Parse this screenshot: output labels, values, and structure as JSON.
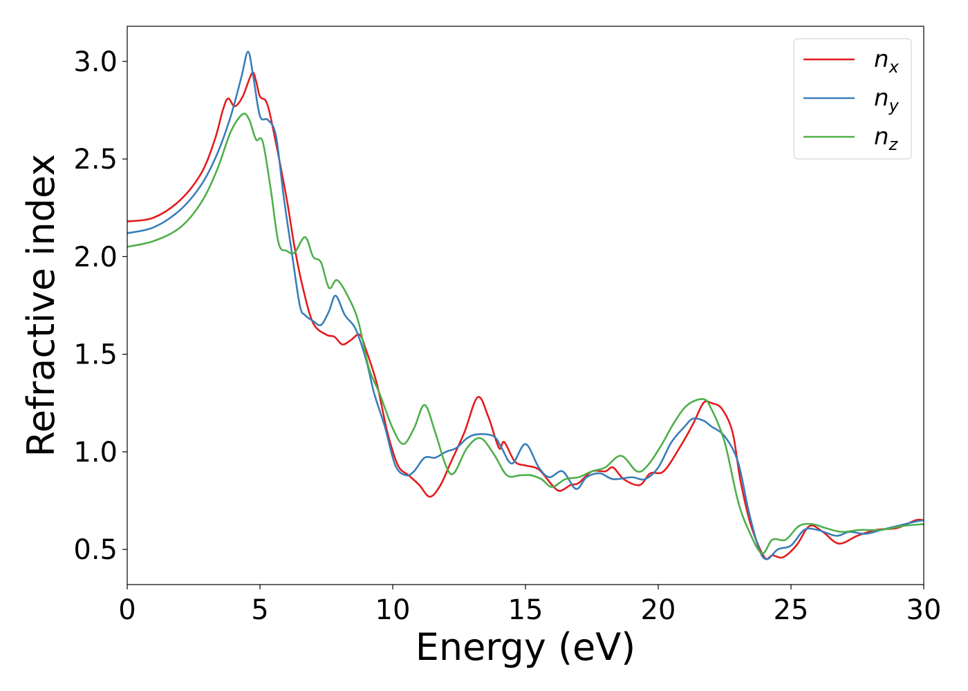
{
  "chart_data": {
    "type": "line",
    "title": "",
    "xlabel": "Energy (eV)",
    "ylabel": "Refractive index",
    "xlim": [
      0,
      30
    ],
    "ylim": [
      0.32,
      3.18
    ],
    "xticks": [
      0,
      5,
      10,
      15,
      20,
      25,
      30
    ],
    "xtick_labels": [
      "0",
      "5",
      "10",
      "15",
      "20",
      "25",
      "30"
    ],
    "yticks": [
      0.5,
      1.0,
      1.5,
      2.0,
      2.5,
      3.0
    ],
    "ytick_labels": [
      "0.5",
      "1.0",
      "1.5",
      "2.0",
      "2.5",
      "3.0"
    ],
    "grid": false,
    "legend_position": "top-right",
    "series": [
      {
        "name": "n_x",
        "label_main": "n",
        "label_sub": "x",
        "color": "#e41a1c",
        "points": [
          [
            0,
            2.18
          ],
          [
            1,
            2.2
          ],
          [
            2,
            2.29
          ],
          [
            2.8,
            2.43
          ],
          [
            3.3,
            2.6
          ],
          [
            3.6,
            2.75
          ],
          [
            3.8,
            2.81
          ],
          [
            4.05,
            2.77
          ],
          [
            4.35,
            2.82
          ],
          [
            4.7,
            2.94
          ],
          [
            4.85,
            2.9
          ],
          [
            5.0,
            2.82
          ],
          [
            5.25,
            2.79
          ],
          [
            5.5,
            2.65
          ],
          [
            6.0,
            2.3
          ],
          [
            6.3,
            2.05
          ],
          [
            6.6,
            1.85
          ],
          [
            7.0,
            1.66
          ],
          [
            7.5,
            1.6
          ],
          [
            7.8,
            1.59
          ],
          [
            8.1,
            1.55
          ],
          [
            8.4,
            1.57
          ],
          [
            8.75,
            1.6
          ],
          [
            9.0,
            1.52
          ],
          [
            9.4,
            1.35
          ],
          [
            9.8,
            1.1
          ],
          [
            10.2,
            0.93
          ],
          [
            10.6,
            0.88
          ],
          [
            11.0,
            0.83
          ],
          [
            11.4,
            0.77
          ],
          [
            11.8,
            0.83
          ],
          [
            12.2,
            0.95
          ],
          [
            12.7,
            1.1
          ],
          [
            13.2,
            1.28
          ],
          [
            13.6,
            1.18
          ],
          [
            14.0,
            1.02
          ],
          [
            14.2,
            1.05
          ],
          [
            14.6,
            0.95
          ],
          [
            15.0,
            0.93
          ],
          [
            15.5,
            0.91
          ],
          [
            16.0,
            0.83
          ],
          [
            16.3,
            0.8
          ],
          [
            16.7,
            0.83
          ],
          [
            17.0,
            0.84
          ],
          [
            17.5,
            0.9
          ],
          [
            18.0,
            0.9
          ],
          [
            18.3,
            0.92
          ],
          [
            18.7,
            0.86
          ],
          [
            19.3,
            0.83
          ],
          [
            19.7,
            0.89
          ],
          [
            20.2,
            0.9
          ],
          [
            20.8,
            1.02
          ],
          [
            21.3,
            1.14
          ],
          [
            21.7,
            1.25
          ],
          [
            22.0,
            1.25
          ],
          [
            22.4,
            1.22
          ],
          [
            22.8,
            1.1
          ],
          [
            23.1,
            0.85
          ],
          [
            23.5,
            0.62
          ],
          [
            24.0,
            0.46
          ],
          [
            24.3,
            0.47
          ],
          [
            24.7,
            0.46
          ],
          [
            25.2,
            0.52
          ],
          [
            25.7,
            0.62
          ],
          [
            26.2,
            0.59
          ],
          [
            26.8,
            0.53
          ],
          [
            27.5,
            0.57
          ],
          [
            28.2,
            0.6
          ],
          [
            29.0,
            0.61
          ],
          [
            29.7,
            0.65
          ],
          [
            30.0,
            0.65
          ]
        ]
      },
      {
        "name": "n_y",
        "label_main": "n",
        "label_sub": "y",
        "color": "#377eb8",
        "points": [
          [
            0,
            2.12
          ],
          [
            1,
            2.15
          ],
          [
            2,
            2.24
          ],
          [
            2.8,
            2.37
          ],
          [
            3.4,
            2.53
          ],
          [
            3.9,
            2.72
          ],
          [
            4.3,
            2.92
          ],
          [
            4.55,
            3.05
          ],
          [
            4.75,
            2.92
          ],
          [
            5.0,
            2.72
          ],
          [
            5.3,
            2.7
          ],
          [
            5.6,
            2.62
          ],
          [
            5.9,
            2.3
          ],
          [
            6.2,
            2.02
          ],
          [
            6.5,
            1.75
          ],
          [
            6.7,
            1.7
          ],
          [
            7.0,
            1.67
          ],
          [
            7.3,
            1.65
          ],
          [
            7.6,
            1.72
          ],
          [
            7.85,
            1.8
          ],
          [
            8.2,
            1.7
          ],
          [
            8.6,
            1.63
          ],
          [
            9.0,
            1.47
          ],
          [
            9.3,
            1.3
          ],
          [
            9.7,
            1.13
          ],
          [
            10.1,
            0.93
          ],
          [
            10.5,
            0.88
          ],
          [
            10.8,
            0.9
          ],
          [
            11.2,
            0.97
          ],
          [
            11.6,
            0.97
          ],
          [
            12.0,
            1.0
          ],
          [
            12.4,
            1.02
          ],
          [
            12.8,
            1.07
          ],
          [
            13.2,
            1.09
          ],
          [
            13.8,
            1.08
          ],
          [
            14.1,
            1.02
          ],
          [
            14.5,
            0.94
          ],
          [
            15.0,
            1.04
          ],
          [
            15.5,
            0.92
          ],
          [
            15.9,
            0.87
          ],
          [
            16.4,
            0.9
          ],
          [
            16.9,
            0.81
          ],
          [
            17.3,
            0.87
          ],
          [
            17.8,
            0.89
          ],
          [
            18.3,
            0.86
          ],
          [
            19.0,
            0.87
          ],
          [
            19.5,
            0.86
          ],
          [
            20.0,
            0.92
          ],
          [
            20.5,
            1.05
          ],
          [
            21.0,
            1.13
          ],
          [
            21.3,
            1.17
          ],
          [
            21.7,
            1.16
          ],
          [
            22.0,
            1.13
          ],
          [
            22.5,
            1.08
          ],
          [
            23.0,
            0.95
          ],
          [
            23.4,
            0.7
          ],
          [
            23.8,
            0.5
          ],
          [
            24.1,
            0.45
          ],
          [
            24.5,
            0.5
          ],
          [
            25.0,
            0.52
          ],
          [
            25.5,
            0.6
          ],
          [
            26.0,
            0.6
          ],
          [
            26.7,
            0.57
          ],
          [
            27.2,
            0.59
          ],
          [
            27.8,
            0.58
          ],
          [
            28.4,
            0.6
          ],
          [
            29.0,
            0.62
          ],
          [
            29.6,
            0.64
          ],
          [
            30.0,
            0.65
          ]
        ]
      },
      {
        "name": "n_z",
        "label_main": "n",
        "label_sub": "z",
        "color": "#4daf4a",
        "points": [
          [
            0,
            2.05
          ],
          [
            1,
            2.08
          ],
          [
            2,
            2.15
          ],
          [
            2.8,
            2.28
          ],
          [
            3.4,
            2.45
          ],
          [
            3.9,
            2.64
          ],
          [
            4.35,
            2.73
          ],
          [
            4.6,
            2.7
          ],
          [
            4.85,
            2.6
          ],
          [
            5.1,
            2.59
          ],
          [
            5.4,
            2.35
          ],
          [
            5.7,
            2.07
          ],
          [
            6.0,
            2.03
          ],
          [
            6.3,
            2.02
          ],
          [
            6.7,
            2.1
          ],
          [
            7.0,
            2.0
          ],
          [
            7.3,
            1.97
          ],
          [
            7.6,
            1.84
          ],
          [
            7.9,
            1.88
          ],
          [
            8.3,
            1.8
          ],
          [
            8.7,
            1.67
          ],
          [
            9.1,
            1.43
          ],
          [
            9.5,
            1.3
          ],
          [
            10.0,
            1.12
          ],
          [
            10.4,
            1.04
          ],
          [
            10.8,
            1.12
          ],
          [
            11.2,
            1.24
          ],
          [
            11.6,
            1.1
          ],
          [
            12.0,
            0.93
          ],
          [
            12.3,
            0.89
          ],
          [
            12.8,
            1.02
          ],
          [
            13.3,
            1.07
          ],
          [
            13.8,
            0.99
          ],
          [
            14.3,
            0.88
          ],
          [
            14.8,
            0.88
          ],
          [
            15.2,
            0.88
          ],
          [
            15.6,
            0.86
          ],
          [
            16.0,
            0.82
          ],
          [
            16.5,
            0.86
          ],
          [
            17.0,
            0.87
          ],
          [
            17.5,
            0.9
          ],
          [
            18.0,
            0.92
          ],
          [
            18.6,
            0.98
          ],
          [
            19.2,
            0.9
          ],
          [
            19.6,
            0.93
          ],
          [
            20.1,
            1.03
          ],
          [
            20.6,
            1.15
          ],
          [
            21.1,
            1.24
          ],
          [
            21.7,
            1.27
          ],
          [
            22.0,
            1.22
          ],
          [
            22.5,
            1.05
          ],
          [
            23.0,
            0.75
          ],
          [
            23.4,
            0.6
          ],
          [
            23.9,
            0.48
          ],
          [
            24.3,
            0.55
          ],
          [
            24.8,
            0.55
          ],
          [
            25.3,
            0.62
          ],
          [
            25.8,
            0.63
          ],
          [
            26.3,
            0.61
          ],
          [
            26.9,
            0.59
          ],
          [
            27.6,
            0.6
          ],
          [
            28.4,
            0.6
          ],
          [
            29.2,
            0.62
          ],
          [
            30.0,
            0.63
          ]
        ]
      }
    ]
  }
}
